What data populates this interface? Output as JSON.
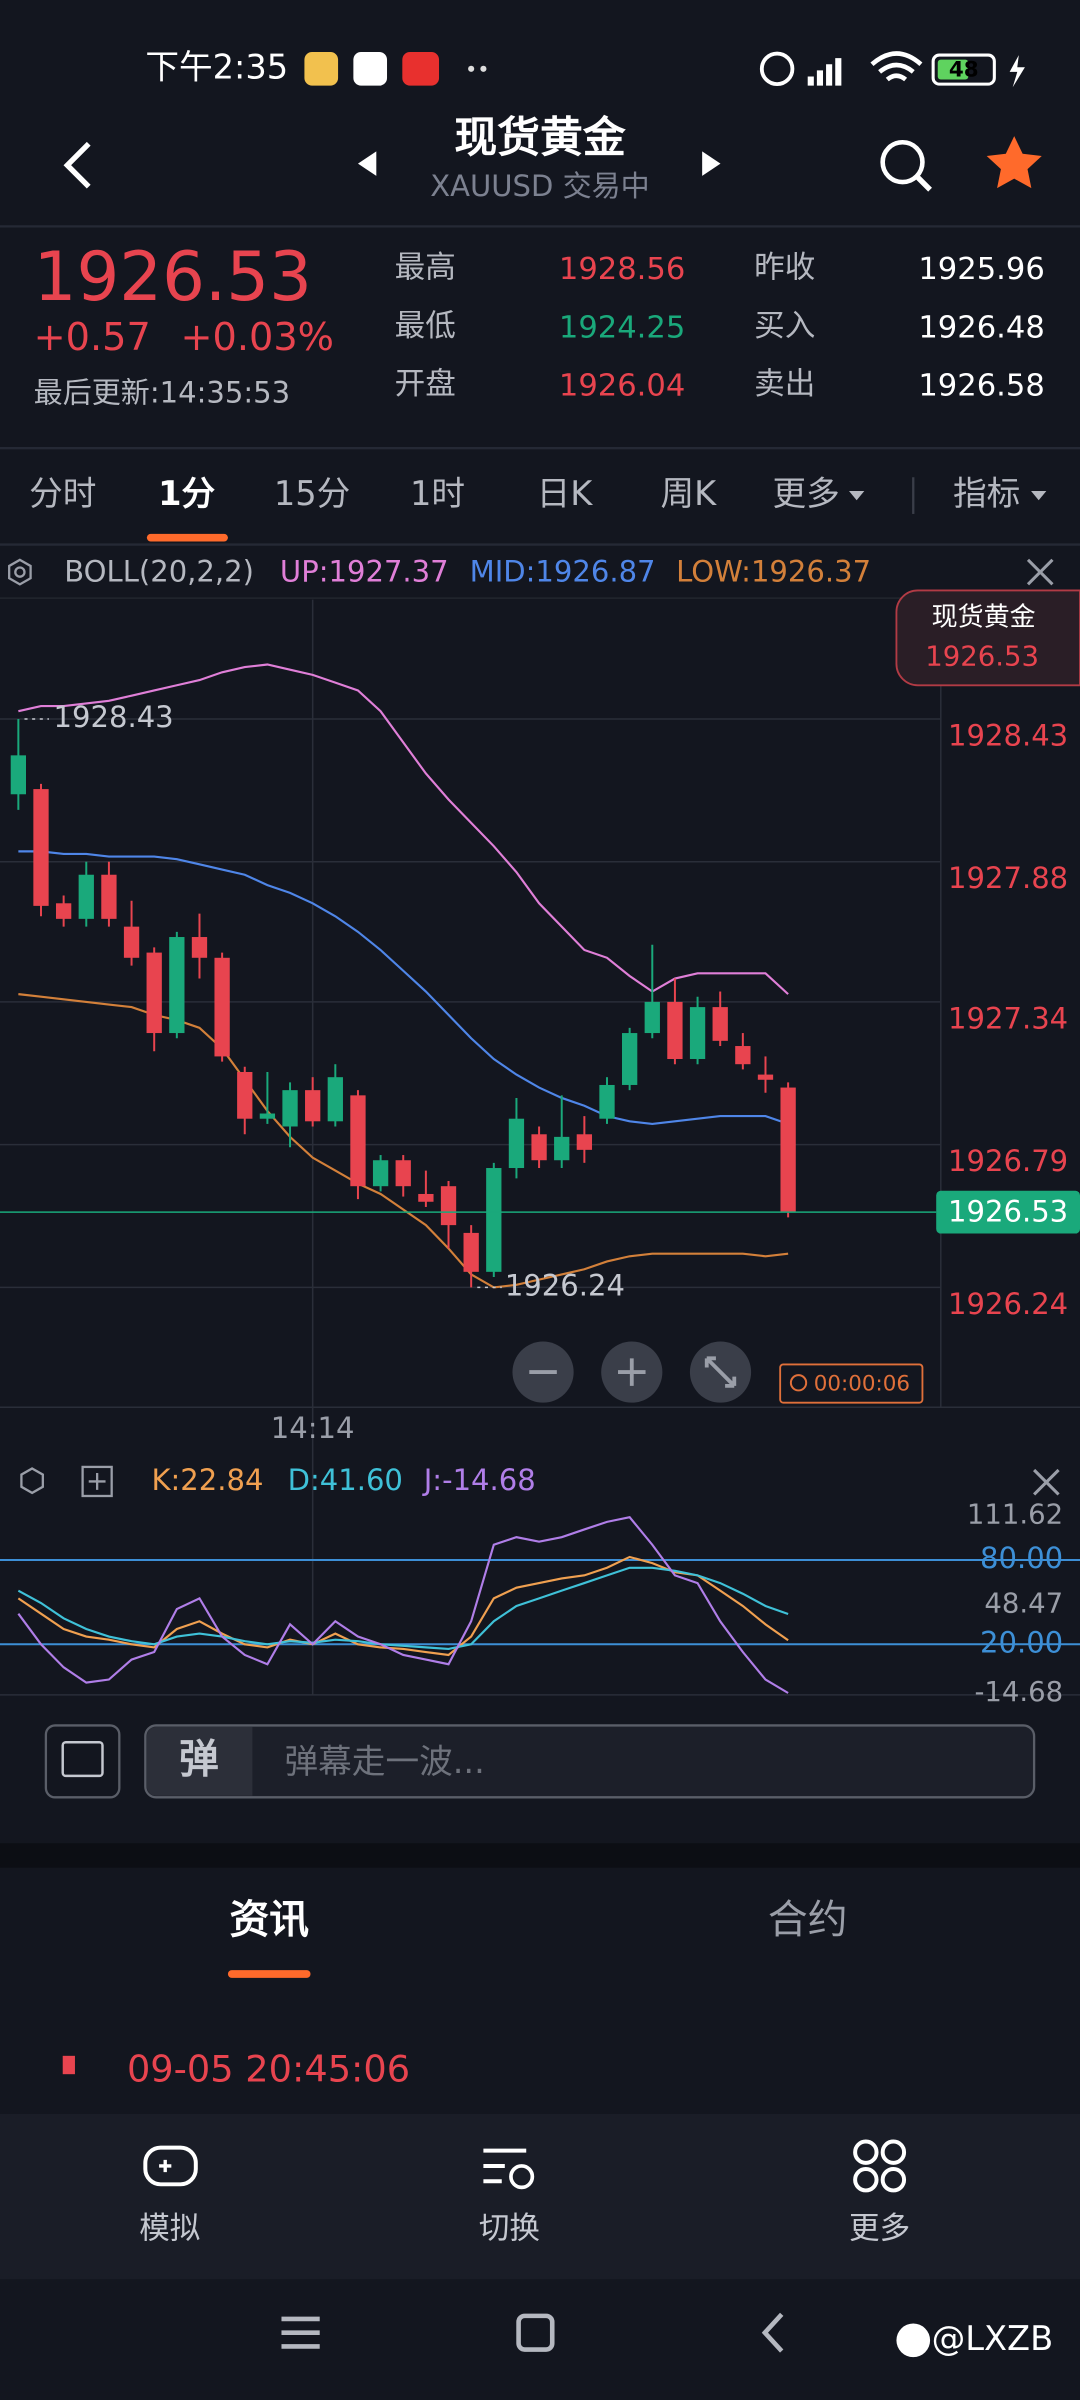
{
  "status_bar": {
    "time": "下午2:35",
    "battery": "48"
  },
  "header": {
    "title": "现货黄金",
    "subtitle": "XAUUSD 交易中"
  },
  "quote": {
    "price": "1926.53",
    "change": "+0.57",
    "change_pct": "+0.03%",
    "updated": "最后更新:14:35:53",
    "stats": [
      {
        "label": "最高",
        "value": "1928.56",
        "color": "#e8444f"
      },
      {
        "label": "最低",
        "value": "1924.25",
        "color": "#1aa97b"
      },
      {
        "label": "开盘",
        "value": "1926.04",
        "color": "#e8444f"
      },
      {
        "label": "昨收",
        "value": "1925.96",
        "color": "#ffffff"
      },
      {
        "label": "买入",
        "value": "1926.48",
        "color": "#ffffff"
      },
      {
        "label": "卖出",
        "value": "1926.58",
        "color": "#ffffff"
      }
    ]
  },
  "tabs": {
    "items": [
      "分时",
      "1分",
      "15分",
      "1时",
      "日K",
      "周K",
      "更多",
      "指标"
    ],
    "active": 1
  },
  "chart_data": [
    {
      "type": "candlestick",
      "indicator": "BOLL(20,2,2)",
      "tag_title": "现货黄金",
      "up_color": "#1aa97b",
      "down_color": "#e8444f",
      "ylim": [
        1925.79,
        1928.89
      ],
      "yticks": [
        1928.43,
        1927.88,
        1927.34,
        1926.79,
        1926.24
      ],
      "current_price": 1926.53,
      "max_label": 1928.43,
      "min_label": 1926.24,
      "timer": "00:00:06",
      "categories": [
        null,
        null,
        null,
        null,
        null,
        null,
        null,
        null,
        null,
        null,
        null,
        null,
        null,
        "14:14",
        null,
        null,
        null,
        null,
        null,
        null,
        null,
        null,
        null,
        null,
        null,
        null,
        null,
        null,
        null,
        null,
        null,
        null,
        null,
        null,
        null
      ],
      "open": [
        1928.14,
        1928.16,
        1927.72,
        1927.66,
        1927.83,
        1927.63,
        1927.53,
        1927.22,
        1927.59,
        1927.51,
        1927.07,
        1926.89,
        1926.86,
        1927.0,
        1926.88,
        1926.98,
        1926.63,
        1926.73,
        1926.6,
        1926.63,
        1926.45,
        1926.3,
        1926.7,
        1926.83,
        1926.73,
        1926.83,
        1926.89,
        1927.02,
        1927.22,
        1927.34,
        1927.12,
        1927.32,
        1927.17,
        1927.06,
        1927.01
      ],
      "close": [
        1928.29,
        1927.71,
        1927.66,
        1927.83,
        1927.66,
        1927.51,
        1927.22,
        1927.59,
        1927.51,
        1927.13,
        1926.89,
        1926.91,
        1927.0,
        1926.88,
        1927.05,
        1926.63,
        1926.73,
        1926.63,
        1926.57,
        1926.48,
        1926.3,
        1926.7,
        1926.89,
        1926.73,
        1926.82,
        1926.77,
        1927.02,
        1927.22,
        1927.34,
        1927.12,
        1927.32,
        1927.19,
        1927.1,
        1927.04,
        1926.53
      ],
      "high": [
        1928.43,
        1928.18,
        1927.75,
        1927.88,
        1927.88,
        1927.73,
        1927.55,
        1927.61,
        1927.68,
        1927.53,
        1927.09,
        1927.07,
        1927.03,
        1927.05,
        1927.1,
        1927.0,
        1926.75,
        1926.75,
        1926.69,
        1926.65,
        1926.48,
        1926.72,
        1926.97,
        1926.86,
        1926.98,
        1926.9,
        1927.05,
        1927.24,
        1927.56,
        1927.43,
        1927.36,
        1927.38,
        1927.22,
        1927.13,
        1927.03
      ],
      "low": [
        1928.08,
        1927.67,
        1927.63,
        1927.63,
        1927.63,
        1927.48,
        1927.15,
        1927.2,
        1927.43,
        1927.11,
        1926.83,
        1926.87,
        1926.78,
        1926.86,
        1926.86,
        1926.58,
        1926.61,
        1926.59,
        1926.55,
        1926.39,
        1926.24,
        1926.28,
        1926.66,
        1926.7,
        1926.7,
        1926.72,
        1926.87,
        1927.0,
        1927.2,
        1927.1,
        1927.1,
        1927.17,
        1927.08,
        1926.99,
        1926.51
      ],
      "series": [
        {
          "name": "UP:1927.37",
          "color": "#e07fd8",
          "values": [
            1928.46,
            1928.48,
            1928.48,
            1928.49,
            1928.5,
            1928.52,
            1928.54,
            1928.56,
            1928.58,
            1928.61,
            1928.63,
            1928.64,
            1928.62,
            1928.6,
            1928.57,
            1928.54,
            1928.46,
            1928.34,
            1928.22,
            1928.12,
            1928.03,
            1927.94,
            1927.84,
            1927.72,
            1927.63,
            1927.54,
            1927.51,
            1927.44,
            1927.38,
            1927.43,
            1927.45,
            1927.45,
            1927.45,
            1927.45,
            1927.37
          ]
        },
        {
          "name": "MID:1926.87",
          "color": "#4f86e8",
          "values": [
            1927.92,
            1927.92,
            1927.91,
            1927.91,
            1927.9,
            1927.9,
            1927.9,
            1927.89,
            1927.87,
            1927.85,
            1927.83,
            1927.79,
            1927.76,
            1927.72,
            1927.67,
            1927.61,
            1927.54,
            1927.46,
            1927.38,
            1927.29,
            1927.2,
            1927.12,
            1927.06,
            1927.01,
            1926.97,
            1926.94,
            1926.9,
            1926.88,
            1926.87,
            1926.88,
            1926.89,
            1926.9,
            1926.9,
            1926.9,
            1926.87
          ]
        },
        {
          "name": "LOW:1926.37",
          "color": "#d3803a",
          "values": [
            1927.37,
            1927.36,
            1927.35,
            1927.34,
            1927.33,
            1927.32,
            1927.29,
            1927.27,
            1927.24,
            1927.16,
            1927.04,
            1926.92,
            1926.82,
            1926.74,
            1926.69,
            1926.64,
            1926.6,
            1926.54,
            1926.48,
            1926.39,
            1926.29,
            1926.24,
            1926.25,
            1926.27,
            1926.29,
            1926.31,
            1926.34,
            1926.36,
            1926.37,
            1926.37,
            1926.37,
            1926.37,
            1926.37,
            1926.36,
            1926.37
          ]
        }
      ]
    },
    {
      "type": "line",
      "ylim": [
        -16,
        118
      ],
      "yticks": [
        111.62,
        48.47,
        -14.68
      ],
      "reference_lines": [
        {
          "value": 80,
          "label": "80.00"
        },
        {
          "value": 20,
          "label": "20.00"
        }
      ],
      "reference_color": "#3d8fd6",
      "series": [
        {
          "name": "K:22.84",
          "color": "#f0a050",
          "values": [
            52.7,
            41.8,
            30.9,
            25.5,
            23.3,
            20,
            17.8,
            30.9,
            36.4,
            27.6,
            20,
            17.8,
            23.3,
            20,
            27.6,
            20,
            17.8,
            16.7,
            14.5,
            12.4,
            25.5,
            52.7,
            60.3,
            63.6,
            66.9,
            69.1,
            74.5,
            82.2,
            77.8,
            71.3,
            69.1,
            58.2,
            47.3,
            34.2,
            22.84
          ]
        },
        {
          "name": "D:41.60",
          "color": "#3fc1d8",
          "values": [
            58.2,
            49.4,
            38.5,
            30.9,
            25.5,
            22.2,
            20,
            25.5,
            27.6,
            25.5,
            22.2,
            20,
            22.2,
            21.1,
            23.3,
            22.2,
            20,
            18.9,
            17.8,
            16.7,
            20,
            36.4,
            47.3,
            52.7,
            58.2,
            63.6,
            69.1,
            74.5,
            74.5,
            72.3,
            69.1,
            63.6,
            56,
            47.3,
            41.6
          ]
        },
        {
          "name": "J:-14.68",
          "color": "#b07ee8",
          "values": [
            41.8,
            20,
            3.6,
            -7.3,
            -5.1,
            9.1,
            14.5,
            45.1,
            52.7,
            25.5,
            12.4,
            5.8,
            34.2,
            20,
            36.4,
            25.5,
            20,
            12.4,
            9.1,
            5.8,
            36.4,
            90.9,
            96.3,
            93.1,
            96.3,
            101.8,
            107.2,
            110.5,
            90.9,
            69.1,
            63.6,
            36.4,
            14.5,
            -5.1,
            -14.68
          ]
        }
      ]
    }
  ],
  "comment_input": {
    "icon": "弹",
    "placeholder": "弹幕走一波..."
  },
  "bottom_tabs": {
    "items": [
      "资讯",
      "合约"
    ],
    "active": 0
  },
  "news": {
    "time": "09-05 20:45:06"
  },
  "nav": [
    "模拟",
    "切换",
    "更多"
  ],
  "watermark": "@LXZB"
}
